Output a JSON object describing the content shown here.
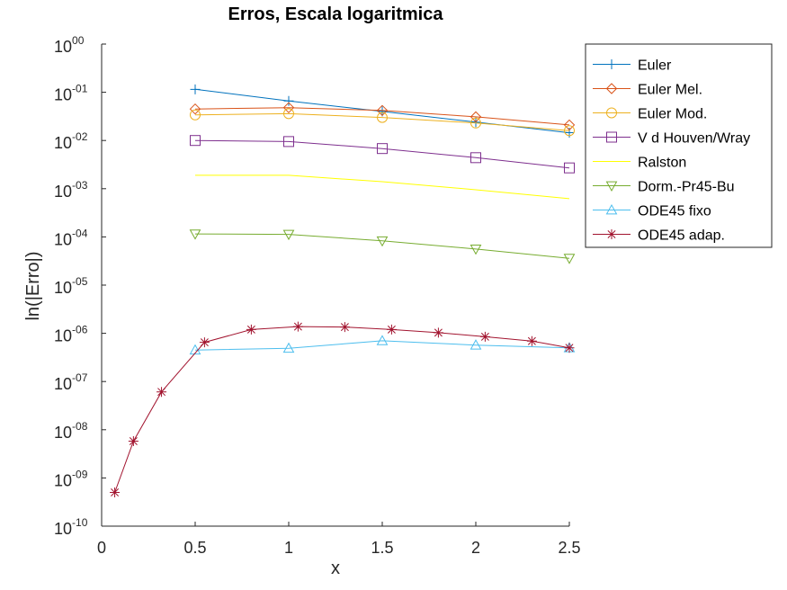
{
  "chart_data": {
    "type": "line",
    "title": "Erros, Escala logaritmica",
    "xlabel": "x",
    "ylabel": "ln(|Erro|)",
    "xlim": [
      0,
      2.5
    ],
    "ylim": [
      1e-10,
      1
    ],
    "yscale": "log",
    "xticks": [
      {
        "value": 0,
        "label": "0"
      },
      {
        "value": 0.5,
        "label": "0.5"
      },
      {
        "value": 1,
        "label": "1"
      },
      {
        "value": 1.5,
        "label": "1.5"
      },
      {
        "value": 2,
        "label": "2"
      },
      {
        "value": 2.5,
        "label": "2.5"
      }
    ],
    "yticks": [
      {
        "value": 1,
        "base": "10",
        "exp": "00"
      },
      {
        "value": 0.1,
        "base": "10",
        "exp": "-01"
      },
      {
        "value": 0.01,
        "base": "10",
        "exp": "-02"
      },
      {
        "value": 0.001,
        "base": "10",
        "exp": "-03"
      },
      {
        "value": 0.0001,
        "base": "10",
        "exp": "-04"
      },
      {
        "value": 1e-05,
        "base": "10",
        "exp": "-05"
      },
      {
        "value": 1e-06,
        "base": "10",
        "exp": "-06"
      },
      {
        "value": 1e-07,
        "base": "10",
        "exp": "-07"
      },
      {
        "value": 1e-08,
        "base": "10",
        "exp": "-08"
      },
      {
        "value": 1e-09,
        "base": "10",
        "exp": "-09"
      },
      {
        "value": 1e-10,
        "base": "10",
        "exp": "-10"
      }
    ],
    "grid": false,
    "legend_position": "top-right, outside plot",
    "series": [
      {
        "name": "Euler",
        "color": "#0072bd",
        "marker": "plus",
        "x": [
          0.5,
          1,
          1.5,
          2,
          2.5
        ],
        "y": [
          0.115,
          0.066,
          0.04,
          0.024,
          0.0145
        ]
      },
      {
        "name": "Euler Mel.",
        "color": "#d95319",
        "marker": "diamond",
        "x": [
          0.5,
          1,
          1.5,
          2,
          2.5
        ],
        "y": [
          0.045,
          0.048,
          0.042,
          0.031,
          0.021
        ]
      },
      {
        "name": "Euler Mod.",
        "color": "#edb120",
        "marker": "circle",
        "x": [
          0.5,
          1,
          1.5,
          2,
          2.5
        ],
        "y": [
          0.034,
          0.036,
          0.03,
          0.023,
          0.016
        ]
      },
      {
        "name": "V d Houven/Wray",
        "color": "#7e2f8e",
        "marker": "square",
        "x": [
          0.5,
          1,
          1.5,
          2,
          2.5
        ],
        "y": [
          0.01,
          0.0095,
          0.0068,
          0.0044,
          0.0027
        ]
      },
      {
        "name": "Ralston",
        "color": "#ffff00",
        "marker": "none",
        "x": [
          0.5,
          1,
          1.5,
          2,
          2.5
        ],
        "y": [
          0.0019,
          0.0019,
          0.0014,
          0.00095,
          0.00062
        ]
      },
      {
        "name": "Dorm.-Pr45-Bu",
        "color": "#77ac30",
        "marker": "triangle-down",
        "x": [
          0.5,
          1,
          1.5,
          2,
          2.5
        ],
        "y": [
          0.000115,
          0.000113,
          8.3e-05,
          5.6e-05,
          3.6e-05
        ]
      },
      {
        "name": "ODE45 fixo",
        "color": "#4dbeee",
        "marker": "triangle-up",
        "x": [
          0.5,
          1,
          1.5,
          2,
          2.5
        ],
        "y": [
          4.5e-07,
          4.9e-07,
          7e-07,
          5.7e-07,
          5e-07
        ]
      },
      {
        "name": "ODE45 adap.",
        "color": "#a2142f",
        "marker": "asterisk",
        "x": [
          0.07,
          0.17,
          0.32,
          0.55,
          0.8,
          1.05,
          1.3,
          1.55,
          1.8,
          2.05,
          2.3,
          2.5
        ],
        "y": [
          5e-10,
          5.8e-09,
          6.1e-08,
          6.5e-07,
          1.2e-06,
          1.38e-06,
          1.35e-06,
          1.2e-06,
          1.03e-06,
          8.5e-07,
          6.9e-07,
          5e-07
        ]
      }
    ]
  }
}
